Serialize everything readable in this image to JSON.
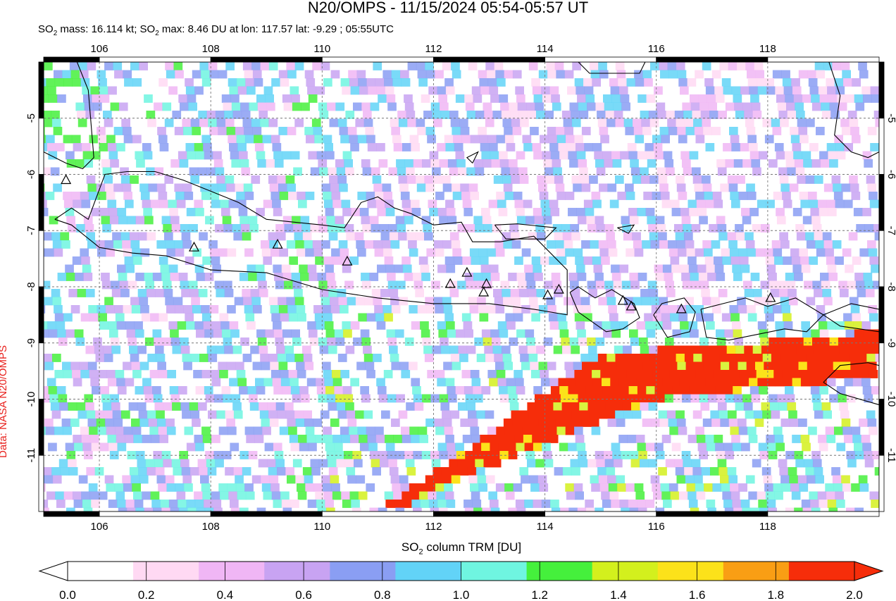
{
  "header": {
    "title": "N20/OMPS - 11/15/2024 05:54-05:57 UT",
    "subtitle_parts": [
      "SO",
      "2",
      " mass: 16.114 kt; SO",
      "2",
      " max: 8.46 DU at lon: 117.57 lat: -9.29 ; 05:55UTC"
    ]
  },
  "credit": "Data: NASA N20/OMPS",
  "map": {
    "lon_range": [
      105,
      120
    ],
    "lat_range": [
      -12,
      -4
    ],
    "lon_ticks": [
      106,
      108,
      110,
      112,
      114,
      116,
      118
    ],
    "lat_ticks": [
      -5,
      -6,
      -7,
      -8,
      -9,
      -10,
      -11
    ],
    "lon_tick_labels": [
      "106",
      "108",
      "110",
      "112",
      "114",
      "116",
      "118"
    ],
    "lat_tick_labels": [
      "-5",
      "-6",
      "-7",
      "-8",
      "-9",
      "-10",
      "-11"
    ],
    "grid": "dashed",
    "volcano_icon": "triangle-outline",
    "volcanoes": [
      [
        105.4,
        -6.1
      ],
      [
        107.7,
        -7.3
      ],
      [
        109.2,
        -7.25
      ],
      [
        110.45,
        -7.55
      ],
      [
        112.3,
        -7.95
      ],
      [
        112.6,
        -7.75
      ],
      [
        112.95,
        -7.95
      ],
      [
        112.9,
        -8.1
      ],
      [
        114.05,
        -8.15
      ],
      [
        114.25,
        -8.05
      ],
      [
        115.4,
        -8.25
      ],
      [
        115.55,
        -8.35
      ],
      [
        116.45,
        -8.4
      ],
      [
        118.05,
        -8.2
      ]
    ],
    "plume_high_zone": [
      [
        111.0,
        -12.0
      ],
      [
        115.0,
        -9.2
      ],
      [
        120.0,
        -8.8
      ],
      [
        120.0,
        -9.6
      ],
      [
        116.0,
        -10.0
      ],
      [
        112.0,
        -11.6
      ],
      [
        111.5,
        -12.0
      ]
    ],
    "plume_max": [
      117.57,
      -9.29
    ]
  },
  "colorbar": {
    "label_parts": [
      "SO",
      "2",
      " column TRM [DU]"
    ],
    "tick_labels": [
      "0.0",
      "0.2",
      "0.4",
      "0.6",
      "0.8",
      "1.0",
      "1.2",
      "1.4",
      "1.6",
      "1.8",
      "2.0"
    ],
    "min": 0.0,
    "max": 2.0,
    "colors": [
      "#ffffff",
      "#ffd9f3",
      "#f0b6f5",
      "#c8a3f2",
      "#8a9ef3",
      "#62d3f7",
      "#6ff5e0",
      "#45f03c",
      "#d3f01d",
      "#fce21a",
      "#f99e14",
      "#f62d0a"
    ]
  }
}
